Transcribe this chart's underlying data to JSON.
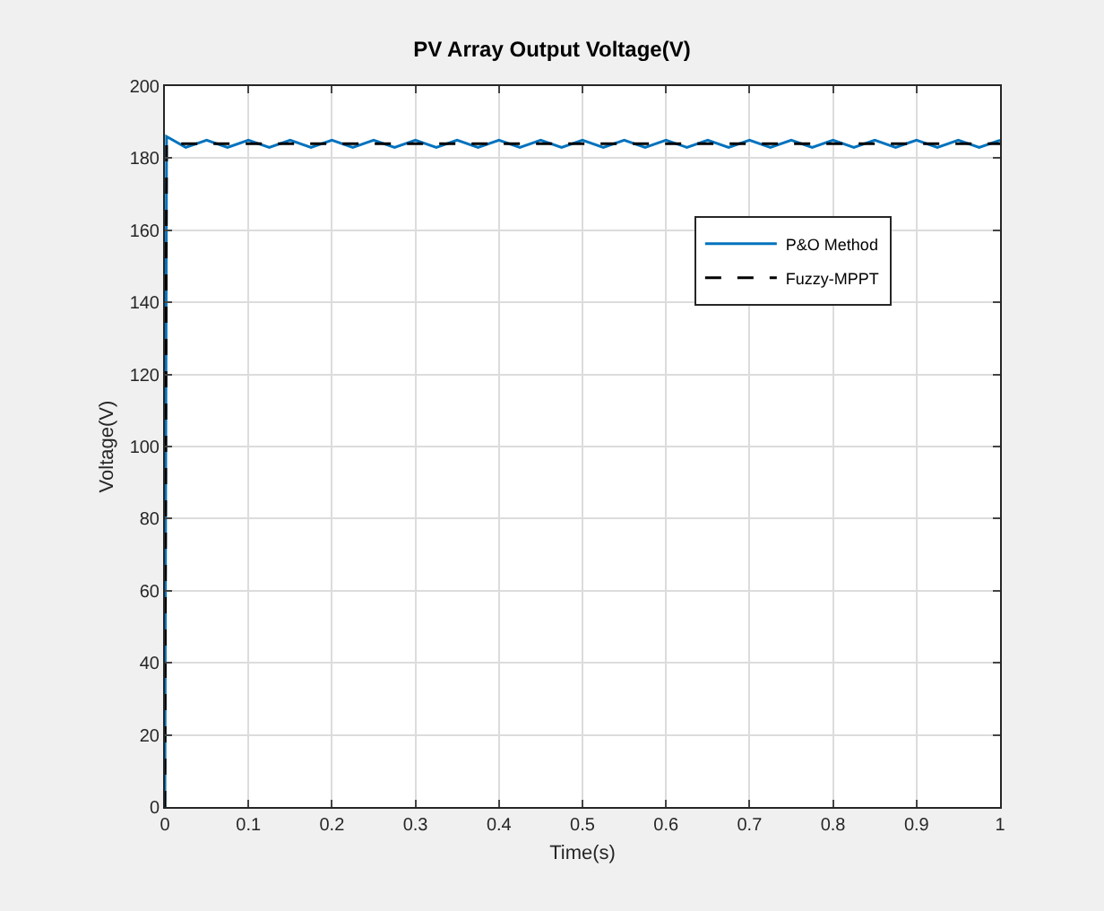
{
  "chart_data": {
    "type": "line",
    "title": "PV Array Output Voltage(V)",
    "xlabel": "Time(s)",
    "ylabel": "Voltage(V)",
    "x": [
      0,
      0.002,
      0.025,
      0.05,
      0.075,
      0.1,
      0.125,
      0.15,
      0.175,
      0.2,
      0.225,
      0.25,
      0.275,
      0.3,
      0.325,
      0.35,
      0.375,
      0.4,
      0.425,
      0.45,
      0.475,
      0.5,
      0.525,
      0.55,
      0.575,
      0.6,
      0.625,
      0.65,
      0.675,
      0.7,
      0.725,
      0.75,
      0.775,
      0.8,
      0.825,
      0.85,
      0.875,
      0.9,
      0.925,
      0.95,
      0.975,
      1
    ],
    "series": [
      {
        "name": "P&O Method",
        "color": "#0072bd",
        "line_style": "solid",
        "values": [
          0,
          186,
          183,
          185,
          183,
          185,
          183,
          185,
          183,
          185,
          183,
          185,
          183,
          185,
          183,
          185,
          183,
          185,
          183,
          185,
          183,
          185,
          183,
          185,
          183,
          185,
          183,
          185,
          183,
          185,
          183,
          185,
          183,
          185,
          183,
          185,
          183,
          185,
          183,
          185,
          183,
          185
        ]
      },
      {
        "name": "Fuzzy-MPPT",
        "color": "#000000",
        "line_style": "dashed",
        "values": [
          0,
          184,
          184,
          184,
          184,
          184,
          184,
          184,
          184,
          184,
          184,
          184,
          184,
          184,
          184,
          184,
          184,
          184,
          184,
          184,
          184,
          184,
          184,
          184,
          184,
          184,
          184,
          184,
          184,
          184,
          184,
          184,
          184,
          184,
          184,
          184,
          184,
          184,
          184,
          184,
          184,
          184
        ]
      }
    ],
    "xlim": [
      0,
      1
    ],
    "xticks": [
      0,
      0.1,
      0.2,
      0.3,
      0.4,
      0.5,
      0.6,
      0.7,
      0.8,
      0.9,
      1
    ],
    "ylim": [
      0,
      200
    ],
    "yticks": [
      0,
      20,
      40,
      60,
      80,
      100,
      120,
      140,
      160,
      180,
      200
    ],
    "grid": true,
    "legend": "right",
    "marker": "none"
  }
}
